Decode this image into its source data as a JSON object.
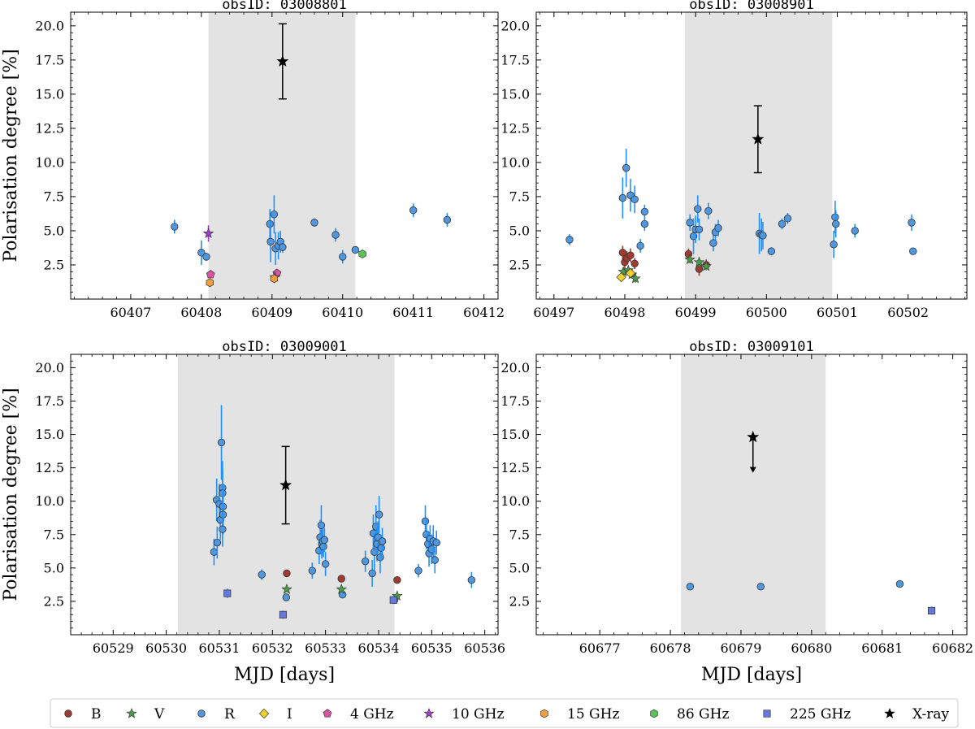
{
  "chart_data": [
    {
      "type": "scatter",
      "title": "obsID: 03008801",
      "xlabel": "",
      "ylabel": "Polarisation degree [%]",
      "xlim": [
        60406.15,
        60412.2
      ],
      "ylim": [
        0,
        21
      ],
      "xticks": [
        60407,
        60408,
        60409,
        60410,
        60411,
        60412
      ],
      "yticks": [
        2.5,
        5.0,
        7.5,
        10.0,
        12.5,
        15.0,
        17.5,
        20.0
      ],
      "shaded": [
        60408.1,
        60410.18
      ],
      "series": [
        {
          "name": "R",
          "points": [
            {
              "x": 60407.62,
              "y": 5.3,
              "err": 0.5
            },
            {
              "x": 60408.0,
              "y": 3.4,
              "err": 0.9
            },
            {
              "x": 60408.07,
              "y": 3.1,
              "err": 0.3
            },
            {
              "x": 60408.97,
              "y": 5.5,
              "err": 1.1
            },
            {
              "x": 60408.98,
              "y": 4.2,
              "err": 1.5
            },
            {
              "x": 60409.03,
              "y": 6.2,
              "err": 1.4
            },
            {
              "x": 60409.05,
              "y": 3.7,
              "err": 1.2
            },
            {
              "x": 60409.09,
              "y": 3.9,
              "err": 1.0
            },
            {
              "x": 60409.12,
              "y": 4.2,
              "err": 0.8
            },
            {
              "x": 60409.15,
              "y": 3.8,
              "err": 0.4
            },
            {
              "x": 60409.6,
              "y": 5.6,
              "err": 0.3
            },
            {
              "x": 60409.9,
              "y": 4.7,
              "err": 0.5
            },
            {
              "x": 60410.0,
              "y": 3.1,
              "err": 0.5
            },
            {
              "x": 60410.18,
              "y": 3.6,
              "err": 0.2
            },
            {
              "x": 60411.0,
              "y": 6.5,
              "err": 0.5
            },
            {
              "x": 60411.48,
              "y": 5.8,
              "err": 0.5
            }
          ]
        },
        {
          "name": "4 GHz",
          "points": [
            {
              "x": 60408.13,
              "y": 1.8,
              "err": 0.2
            },
            {
              "x": 60409.07,
              "y": 1.9,
              "err": 0.2
            }
          ]
        },
        {
          "name": "10 GHz",
          "points": [
            {
              "x": 60408.1,
              "y": 4.8,
              "err": 0.6
            },
            {
              "x": 60409.04,
              "y": 1.6,
              "err": 0.4
            }
          ]
        },
        {
          "name": "15 GHz",
          "points": [
            {
              "x": 60408.12,
              "y": 1.2,
              "err": 0.1
            },
            {
              "x": 60409.03,
              "y": 1.5,
              "err": 0.1
            }
          ]
        },
        {
          "name": "86 GHz",
          "points": [
            {
              "x": 60410.28,
              "y": 3.3,
              "err": 0.2
            }
          ]
        },
        {
          "name": "X-ray",
          "points": [
            {
              "x": 60409.15,
              "y": 17.4,
              "err": 2.75
            }
          ]
        }
      ]
    },
    {
      "type": "scatter",
      "title": "obsID: 03008901",
      "xlabel": "",
      "ylabel": "",
      "xlim": [
        60496.75,
        60502.83
      ],
      "ylim": [
        0,
        21
      ],
      "xticks": [
        60497,
        60498,
        60499,
        60500,
        60501,
        60502
      ],
      "yticks": [
        2.5,
        5.0,
        7.5,
        10.0,
        12.5,
        15.0,
        17.5,
        20.0
      ],
      "shaded": [
        60498.85,
        60500.93
      ],
      "series": [
        {
          "name": "B",
          "points": [
            {
              "x": 60497.97,
              "y": 3.4,
              "err": 0.5
            },
            {
              "x": 60498.0,
              "y": 2.7,
              "err": 0.5
            },
            {
              "x": 60498.03,
              "y": 3.0,
              "err": 0.5
            },
            {
              "x": 60498.08,
              "y": 3.2,
              "err": 0.5
            },
            {
              "x": 60498.14,
              "y": 2.6,
              "err": 0.4
            },
            {
              "x": 60498.9,
              "y": 3.3,
              "err": 0.4
            },
            {
              "x": 60499.05,
              "y": 2.2,
              "err": 0.5
            },
            {
              "x": 60499.15,
              "y": 2.5,
              "err": 0.4
            }
          ]
        },
        {
          "name": "V",
          "points": [
            {
              "x": 60497.98,
              "y": 2.0,
              "err": 0.3
            },
            {
              "x": 60498.05,
              "y": 2.1,
              "err": 0.3
            },
            {
              "x": 60498.1,
              "y": 1.8,
              "err": 0.3
            },
            {
              "x": 60498.15,
              "y": 1.5,
              "err": 0.3
            },
            {
              "x": 60498.92,
              "y": 2.9,
              "err": 0.3
            },
            {
              "x": 60499.05,
              "y": 2.7,
              "err": 0.3
            },
            {
              "x": 60499.15,
              "y": 2.4,
              "err": 0.3
            }
          ]
        },
        {
          "name": "R",
          "points": [
            {
              "x": 60497.22,
              "y": 4.35,
              "err": 0.4
            },
            {
              "x": 60497.97,
              "y": 7.4,
              "err": 1.5
            },
            {
              "x": 60498.02,
              "y": 9.6,
              "err": 1.4
            },
            {
              "x": 60498.08,
              "y": 7.6,
              "err": 1.2
            },
            {
              "x": 60498.14,
              "y": 7.3,
              "err": 1.0
            },
            {
              "x": 60498.22,
              "y": 3.9,
              "err": 0.5
            },
            {
              "x": 60498.28,
              "y": 6.4,
              "err": 0.5
            },
            {
              "x": 60498.28,
              "y": 5.5,
              "err": 0.5
            },
            {
              "x": 60498.92,
              "y": 5.6,
              "err": 0.6
            },
            {
              "x": 60498.97,
              "y": 4.6,
              "err": 1.3
            },
            {
              "x": 60499.0,
              "y": 5.1,
              "err": 1.0
            },
            {
              "x": 60499.03,
              "y": 6.6,
              "err": 1.0
            },
            {
              "x": 60499.05,
              "y": 5.1,
              "err": 0.8
            },
            {
              "x": 60499.18,
              "y": 6.45,
              "err": 0.6
            },
            {
              "x": 60499.25,
              "y": 4.1,
              "err": 0.6
            },
            {
              "x": 60499.28,
              "y": 4.9,
              "err": 0.6
            },
            {
              "x": 60499.32,
              "y": 5.2,
              "err": 0.6
            },
            {
              "x": 60499.9,
              "y": 4.8,
              "err": 1.5
            },
            {
              "x": 60499.93,
              "y": 4.7,
              "err": 1.2
            },
            {
              "x": 60499.95,
              "y": 4.65,
              "err": 1.0
            },
            {
              "x": 60500.07,
              "y": 3.5,
              "err": 0.3
            },
            {
              "x": 60500.22,
              "y": 5.5,
              "err": 0.4
            },
            {
              "x": 60500.3,
              "y": 5.9,
              "err": 0.4
            },
            {
              "x": 60500.95,
              "y": 4.0,
              "err": 1.0
            },
            {
              "x": 60500.97,
              "y": 6.0,
              "err": 1.2
            },
            {
              "x": 60500.98,
              "y": 5.5,
              "err": 1.0
            },
            {
              "x": 60501.25,
              "y": 5.0,
              "err": 0.5
            },
            {
              "x": 60502.05,
              "y": 5.6,
              "err": 0.6
            },
            {
              "x": 60502.07,
              "y": 3.5,
              "err": 0.2
            }
          ]
        },
        {
          "name": "I",
          "points": [
            {
              "x": 60497.95,
              "y": 1.6,
              "err": 0.2
            },
            {
              "x": 60498.08,
              "y": 1.9,
              "err": 0.2
            }
          ]
        },
        {
          "name": "X-ray",
          "points": [
            {
              "x": 60499.88,
              "y": 11.7,
              "err": 2.45
            }
          ]
        }
      ]
    },
    {
      "type": "scatter",
      "title": "obsID: 03009001",
      "xlabel": "MJD [days]",
      "ylabel": "Polarisation degree [%]",
      "xlim": [
        60528.2,
        60536.25
      ],
      "ylim": [
        0,
        21
      ],
      "xticks": [
        60529,
        60530,
        60531,
        60532,
        60533,
        60534,
        60535,
        60536
      ],
      "yticks": [
        2.5,
        5.0,
        7.5,
        10.0,
        12.5,
        15.0,
        17.5,
        20.0
      ],
      "shaded": [
        60530.22,
        60534.3
      ],
      "series": [
        {
          "name": "B",
          "points": [
            {
              "x": 60532.27,
              "y": 4.6,
              "err": 0.2
            },
            {
              "x": 60533.3,
              "y": 4.2,
              "err": 0.2
            },
            {
              "x": 60534.35,
              "y": 4.1,
              "err": 0.2
            }
          ]
        },
        {
          "name": "V",
          "points": [
            {
              "x": 60532.27,
              "y": 3.4,
              "err": 0.2
            },
            {
              "x": 60533.3,
              "y": 3.4,
              "err": 0.2
            },
            {
              "x": 60534.35,
              "y": 2.9,
              "err": 0.2
            }
          ]
        },
        {
          "name": "R",
          "points": [
            {
              "x": 60530.9,
              "y": 6.2,
              "err": 1.0
            },
            {
              "x": 60530.95,
              "y": 10.1,
              "err": 1.6
            },
            {
              "x": 60530.96,
              "y": 6.9,
              "err": 1.2
            },
            {
              "x": 60531.0,
              "y": 9.8,
              "err": 1.5
            },
            {
              "x": 60531.02,
              "y": 8.6,
              "err": 1.5
            },
            {
              "x": 60531.04,
              "y": 14.4,
              "err": 2.8
            },
            {
              "x": 60531.06,
              "y": 11.0,
              "err": 2.0
            },
            {
              "x": 60531.06,
              "y": 10.6,
              "err": 1.8
            },
            {
              "x": 60531.07,
              "y": 9.6,
              "err": 1.7
            },
            {
              "x": 60531.07,
              "y": 9.0,
              "err": 1.5
            },
            {
              "x": 60531.06,
              "y": 7.9,
              "err": 1.3
            },
            {
              "x": 60531.8,
              "y": 4.5,
              "err": 0.4
            },
            {
              "x": 60532.26,
              "y": 2.8,
              "err": 0.2
            },
            {
              "x": 60532.75,
              "y": 4.8,
              "err": 0.6
            },
            {
              "x": 60532.88,
              "y": 6.3,
              "err": 1.0
            },
            {
              "x": 60532.9,
              "y": 7.3,
              "err": 1.3
            },
            {
              "x": 60532.92,
              "y": 8.2,
              "err": 1.5
            },
            {
              "x": 60532.93,
              "y": 6.8,
              "err": 1.1
            },
            {
              "x": 60532.95,
              "y": 7.0,
              "err": 1.0
            },
            {
              "x": 60532.96,
              "y": 6.6,
              "err": 0.8
            },
            {
              "x": 60532.98,
              "y": 7.1,
              "err": 0.9
            },
            {
              "x": 60533.0,
              "y": 5.3,
              "err": 0.9
            },
            {
              "x": 60533.32,
              "y": 3.0,
              "err": 0.2
            },
            {
              "x": 60533.75,
              "y": 5.5,
              "err": 0.8
            },
            {
              "x": 60533.88,
              "y": 4.6,
              "err": 1.0
            },
            {
              "x": 60533.9,
              "y": 7.6,
              "err": 1.4
            },
            {
              "x": 60533.92,
              "y": 6.2,
              "err": 1.4
            },
            {
              "x": 60533.95,
              "y": 8.1,
              "err": 1.6
            },
            {
              "x": 60533.97,
              "y": 6.8,
              "err": 1.3
            },
            {
              "x": 60533.99,
              "y": 7.3,
              "err": 1.2
            },
            {
              "x": 60534.01,
              "y": 9.0,
              "err": 1.4
            },
            {
              "x": 60534.03,
              "y": 5.8,
              "err": 1.2
            },
            {
              "x": 60534.05,
              "y": 6.5,
              "err": 1.0
            },
            {
              "x": 60534.07,
              "y": 7.0,
              "err": 1.0
            },
            {
              "x": 60534.3,
              "y": 2.6,
              "err": 0.2
            },
            {
              "x": 60534.75,
              "y": 4.8,
              "err": 0.5
            },
            {
              "x": 60534.88,
              "y": 8.5,
              "err": 1.2
            },
            {
              "x": 60534.9,
              "y": 7.5,
              "err": 1.1
            },
            {
              "x": 60534.93,
              "y": 6.8,
              "err": 1.0
            },
            {
              "x": 60534.95,
              "y": 6.1,
              "err": 1.0
            },
            {
              "x": 60534.97,
              "y": 7.2,
              "err": 1.0
            },
            {
              "x": 60535.0,
              "y": 6.4,
              "err": 1.1
            },
            {
              "x": 60535.03,
              "y": 7.0,
              "err": 1.2
            },
            {
              "x": 60535.06,
              "y": 5.6,
              "err": 1.0
            },
            {
              "x": 60535.09,
              "y": 6.9,
              "err": 0.9
            },
            {
              "x": 60535.75,
              "y": 4.1,
              "err": 0.6
            }
          ]
        },
        {
          "name": "225 GHz",
          "points": [
            {
              "x": 60531.15,
              "y": 3.1,
              "err": 0.35
            },
            {
              "x": 60532.2,
              "y": 1.5,
              "err": 0.3
            },
            {
              "x": 60534.28,
              "y": 2.6,
              "err": 0.3
            }
          ]
        },
        {
          "name": "X-ray",
          "points": [
            {
              "x": 60532.25,
              "y": 11.2,
              "err": 2.9
            }
          ]
        }
      ]
    },
    {
      "type": "scatter",
      "title": "obsID: 03009101",
      "xlabel": "MJD [days]",
      "ylabel": "",
      "xlim": [
        60676.1,
        60682.2
      ],
      "ylim": [
        0,
        21
      ],
      "xticks": [
        60677,
        60678,
        60679,
        60680,
        60681,
        60682
      ],
      "yticks": [
        2.5,
        5.0,
        7.5,
        10.0,
        12.5,
        15.0,
        17.5,
        20.0
      ],
      "shaded": [
        60678.15,
        60680.2
      ],
      "series": [
        {
          "name": "R",
          "points": [
            {
              "x": 60678.28,
              "y": 3.6,
              "err": 0.15
            },
            {
              "x": 60679.28,
              "y": 3.6,
              "err": 0.15
            },
            {
              "x": 60681.25,
              "y": 3.8,
              "err": 0.15
            }
          ]
        },
        {
          "name": "225 GHz",
          "points": [
            {
              "x": 60681.7,
              "y": 1.8,
              "err": 0.3
            }
          ]
        },
        {
          "name": "X-ray",
          "points": [
            {
              "x": 60679.17,
              "y": 14.8,
              "upper_limit": true,
              "arrow_to": 12.2
            }
          ]
        }
      ]
    }
  ],
  "legend": {
    "placement": "bottom",
    "entries": [
      {
        "label": "B",
        "marker": "circle",
        "color": "#a33a30"
      },
      {
        "label": "V",
        "marker": "star",
        "color": "#4a9a4a"
      },
      {
        "label": "R",
        "marker": "circle",
        "color": "#4f97de"
      },
      {
        "label": "I",
        "marker": "diamond",
        "color": "#f3d22a"
      },
      {
        "label": "4 GHz",
        "marker": "pentagon",
        "color": "#d9549f"
      },
      {
        "label": "10 GHz",
        "marker": "star",
        "color": "#9c40c4"
      },
      {
        "label": "15 GHz",
        "marker": "hexagon",
        "color": "#f2a03d"
      },
      {
        "label": "86 GHz",
        "marker": "hexagon",
        "color": "#57c457"
      },
      {
        "label": "225 GHz",
        "marker": "square",
        "color": "#6478e0"
      },
      {
        "label": "X-ray",
        "marker": "star",
        "color": "#000000"
      }
    ]
  },
  "colors": {
    "shade": "#e3e3e3",
    "r_errorbar": "#1e90ff",
    "marker_edge": "#333333"
  }
}
